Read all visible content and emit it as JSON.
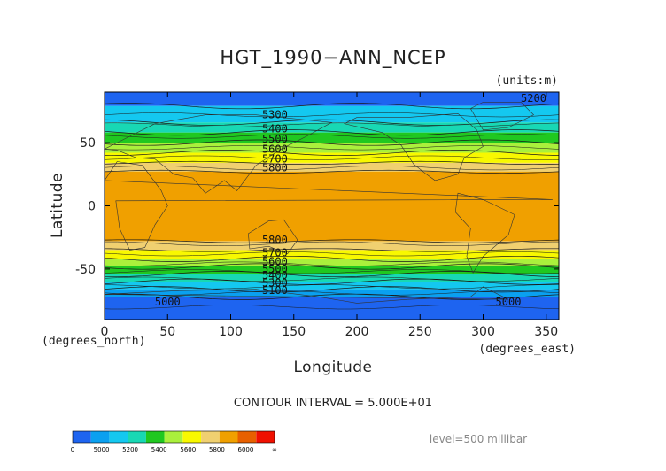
{
  "chart_data": {
    "type": "heatmap",
    "title": "HGT_1990−ANN_NCEP",
    "units_note": "(units:m)",
    "xlabel": "Longitude",
    "ylabel": "Latitude",
    "x_unit_note": "(degrees_east)",
    "y_unit_note": "(degrees_north)",
    "xlim": [
      0,
      360
    ],
    "ylim": [
      -90,
      90
    ],
    "x_ticks": [
      0,
      50,
      100,
      150,
      200,
      250,
      300,
      350
    ],
    "y_ticks": [
      -50,
      0,
      50
    ],
    "contour_interval_text": "CONTOUR INTERVAL = 5.000E+01",
    "level_text": "level=500 millibar",
    "contour_labels": [
      {
        "text": "5200",
        "lon": 340,
        "lat": 85
      },
      {
        "text": "5300",
        "lon": 135,
        "lat": 72
      },
      {
        "text": "5400",
        "lon": 135,
        "lat": 61
      },
      {
        "text": "5500",
        "lon": 135,
        "lat": 53
      },
      {
        "text": "5600",
        "lon": 135,
        "lat": 45
      },
      {
        "text": "5700",
        "lon": 135,
        "lat": 37
      },
      {
        "text": "5800",
        "lon": 135,
        "lat": 30
      },
      {
        "text": "5800",
        "lon": 135,
        "lat": -27
      },
      {
        "text": "5700",
        "lon": 135,
        "lat": -37
      },
      {
        "text": "5600",
        "lon": 135,
        "lat": -44
      },
      {
        "text": "5500",
        "lon": 135,
        "lat": -50
      },
      {
        "text": "5400",
        "lon": 135,
        "lat": -55
      },
      {
        "text": "5300",
        "lon": 135,
        "lat": -61
      },
      {
        "text": "5100",
        "lon": 135,
        "lat": -67
      },
      {
        "text": "5000",
        "lon": 50,
        "lat": -76
      },
      {
        "text": "5000",
        "lon": 320,
        "lat": -76
      }
    ],
    "bands": [
      {
        "lat_top": 90,
        "lat_bottom": 79,
        "color": "#1e64f0",
        "value": "<5200"
      },
      {
        "lat_top": 79,
        "lat_bottom": 66,
        "color": "#14c8f0",
        "value": "5300"
      },
      {
        "lat_top": 66,
        "lat_bottom": 58,
        "color": "#18d8b4",
        "value": "5400"
      },
      {
        "lat_top": 58,
        "lat_bottom": 50,
        "color": "#20c820",
        "value": "5500"
      },
      {
        "lat_top": 50,
        "lat_bottom": 42,
        "color": "#aaf03c",
        "value": "5600"
      },
      {
        "lat_top": 42,
        "lat_bottom": 34,
        "color": "#f8f800",
        "value": "5700"
      },
      {
        "lat_top": 34,
        "lat_bottom": 27,
        "color": "#f0d070",
        "value": "5800"
      },
      {
        "lat_top": 27,
        "lat_bottom": -28,
        "color": "#f0a000",
        "value": ">5800"
      },
      {
        "lat_top": -28,
        "lat_bottom": -35,
        "color": "#f0d070",
        "value": "5800"
      },
      {
        "lat_top": -35,
        "lat_bottom": -42,
        "color": "#f8f800",
        "value": "5700"
      },
      {
        "lat_top": -42,
        "lat_bottom": -48,
        "color": "#aaf03c",
        "value": "5600"
      },
      {
        "lat_top": -48,
        "lat_bottom": -54,
        "color": "#20c820",
        "value": "5500"
      },
      {
        "lat_top": -54,
        "lat_bottom": -60,
        "color": "#18d8b4",
        "value": "5400"
      },
      {
        "lat_top": -60,
        "lat_bottom": -66,
        "color": "#14c8f0",
        "value": "5300"
      },
      {
        "lat_top": -66,
        "lat_bottom": -72,
        "color": "#0aa0f0",
        "value": "5100"
      },
      {
        "lat_top": -72,
        "lat_bottom": -90,
        "color": "#1e64f0",
        "value": "<5000"
      }
    ],
    "colorbar": {
      "colors": [
        "#1e64f0",
        "#0aa0f0",
        "#14c8f0",
        "#18d8b4",
        "#20c820",
        "#aaf03c",
        "#f8f800",
        "#f0d070",
        "#f0a000",
        "#e86000",
        "#f01000"
      ],
      "labels": [
        "0",
        "5000",
        "5200",
        "5400",
        "5600",
        "5800",
        "6000",
        "∞"
      ],
      "label_positions": [
        0,
        1,
        2,
        3,
        4,
        5,
        6,
        7
      ]
    }
  }
}
